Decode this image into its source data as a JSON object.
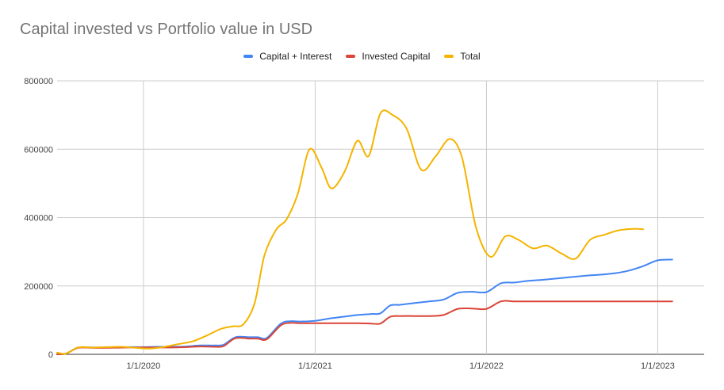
{
  "chart_data": {
    "type": "line",
    "title": "Capital invested vs Portfolio value in USD",
    "xlabel": "",
    "ylabel": "",
    "ylim": [
      0,
      800000
    ],
    "xlim": [
      "2019-07-01",
      "2023-04-10"
    ],
    "grid": true,
    "legend_position": "top",
    "y_ticks": [
      {
        "value": 0,
        "label": "0"
      },
      {
        "value": 200000,
        "label": "200000"
      },
      {
        "value": 400000,
        "label": "400000"
      },
      {
        "value": 600000,
        "label": "600000"
      },
      {
        "value": 800000,
        "label": "800000"
      }
    ],
    "x_ticks": [
      {
        "value": "2020-01-01",
        "label": "1/1/2020"
      },
      {
        "value": "2021-01-01",
        "label": "1/1/2021"
      },
      {
        "value": "2022-01-01",
        "label": "1/1/2022"
      },
      {
        "value": "2023-01-01",
        "label": "1/1/2023"
      }
    ],
    "series": [
      {
        "name": "Capital + Interest",
        "color": "#4285f4",
        "points": [
          [
            "2019-07-01",
            0
          ],
          [
            "2019-07-20",
            2000
          ],
          [
            "2019-08-15",
            20000
          ],
          [
            "2019-09-15",
            20000
          ],
          [
            "2019-10-15",
            20000
          ],
          [
            "2019-12-01",
            21000
          ],
          [
            "2020-01-01",
            21000
          ],
          [
            "2020-02-01",
            22000
          ],
          [
            "2020-03-01",
            22000
          ],
          [
            "2020-04-01",
            23000
          ],
          [
            "2020-05-01",
            26000
          ],
          [
            "2020-06-01",
            26000
          ],
          [
            "2020-06-20",
            28000
          ],
          [
            "2020-07-15",
            50000
          ],
          [
            "2020-08-15",
            50000
          ],
          [
            "2020-09-01",
            50000
          ],
          [
            "2020-09-20",
            48000
          ],
          [
            "2020-10-20",
            90000
          ],
          [
            "2020-11-10",
            97000
          ],
          [
            "2020-12-01",
            96000
          ],
          [
            "2021-01-01",
            98000
          ],
          [
            "2021-02-01",
            105000
          ],
          [
            "2021-03-01",
            110000
          ],
          [
            "2021-04-01",
            115000
          ],
          [
            "2021-05-01",
            118000
          ],
          [
            "2021-05-20",
            120000
          ],
          [
            "2021-06-10",
            143000
          ],
          [
            "2021-07-01",
            145000
          ],
          [
            "2021-08-01",
            150000
          ],
          [
            "2021-09-01",
            155000
          ],
          [
            "2021-10-01",
            160000
          ],
          [
            "2021-11-01",
            180000
          ],
          [
            "2021-12-01",
            183000
          ],
          [
            "2022-01-01",
            182000
          ],
          [
            "2022-02-01",
            208000
          ],
          [
            "2022-03-01",
            210000
          ],
          [
            "2022-04-01",
            215000
          ],
          [
            "2022-05-01",
            218000
          ],
          [
            "2022-06-01",
            222000
          ],
          [
            "2022-07-01",
            226000
          ],
          [
            "2022-08-01",
            230000
          ],
          [
            "2022-09-01",
            233000
          ],
          [
            "2022-10-01",
            237000
          ],
          [
            "2022-11-01",
            245000
          ],
          [
            "2022-12-01",
            258000
          ],
          [
            "2023-01-01",
            275000
          ],
          [
            "2023-02-01",
            277000
          ]
        ]
      },
      {
        "name": "Invested Capital",
        "color": "#db4437",
        "points": [
          [
            "2019-07-01",
            0
          ],
          [
            "2019-07-20",
            2000
          ],
          [
            "2019-08-15",
            19000
          ],
          [
            "2019-09-15",
            19000
          ],
          [
            "2019-10-15",
            19000
          ],
          [
            "2019-12-01",
            20000
          ],
          [
            "2020-01-01",
            20000
          ],
          [
            "2020-02-01",
            20000
          ],
          [
            "2020-03-01",
            20000
          ],
          [
            "2020-04-01",
            21000
          ],
          [
            "2020-05-01",
            23000
          ],
          [
            "2020-06-01",
            22000
          ],
          [
            "2020-06-20",
            24000
          ],
          [
            "2020-07-15",
            47000
          ],
          [
            "2020-08-15",
            46000
          ],
          [
            "2020-09-01",
            46000
          ],
          [
            "2020-09-20",
            44000
          ],
          [
            "2020-10-20",
            85000
          ],
          [
            "2020-11-10",
            92000
          ],
          [
            "2020-12-01",
            91000
          ],
          [
            "2021-01-01",
            91000
          ],
          [
            "2021-02-01",
            91000
          ],
          [
            "2021-03-01",
            91000
          ],
          [
            "2021-04-01",
            91000
          ],
          [
            "2021-05-01",
            90000
          ],
          [
            "2021-05-20",
            90000
          ],
          [
            "2021-06-10",
            110000
          ],
          [
            "2021-07-01",
            112000
          ],
          [
            "2021-08-01",
            112000
          ],
          [
            "2021-09-01",
            112000
          ],
          [
            "2021-10-01",
            115000
          ],
          [
            "2021-11-01",
            133000
          ],
          [
            "2021-12-01",
            134000
          ],
          [
            "2022-01-01",
            133000
          ],
          [
            "2022-02-01",
            155000
          ],
          [
            "2022-03-01",
            155000
          ],
          [
            "2022-04-01",
            155000
          ],
          [
            "2022-05-01",
            155000
          ],
          [
            "2022-06-01",
            155000
          ],
          [
            "2022-07-01",
            155000
          ],
          [
            "2022-08-01",
            155000
          ],
          [
            "2022-09-01",
            155000
          ],
          [
            "2022-10-01",
            155000
          ],
          [
            "2022-11-01",
            155000
          ],
          [
            "2022-12-01",
            155000
          ],
          [
            "2023-01-01",
            155000
          ],
          [
            "2023-02-01",
            155000
          ]
        ]
      },
      {
        "name": "Total",
        "color": "#f4b400",
        "points": [
          [
            "2019-07-01",
            5000
          ],
          [
            "2019-07-20",
            2000
          ],
          [
            "2019-08-15",
            20000
          ],
          [
            "2019-09-15",
            20000
          ],
          [
            "2019-10-15",
            21000
          ],
          [
            "2019-11-15",
            22000
          ],
          [
            "2019-12-15",
            19000
          ],
          [
            "2020-01-15",
            17000
          ],
          [
            "2020-02-15",
            22000
          ],
          [
            "2020-03-15",
            30000
          ],
          [
            "2020-04-15",
            38000
          ],
          [
            "2020-05-15",
            55000
          ],
          [
            "2020-06-15",
            75000
          ],
          [
            "2020-07-10",
            82000
          ],
          [
            "2020-08-01",
            88000
          ],
          [
            "2020-08-25",
            150000
          ],
          [
            "2020-09-15",
            290000
          ],
          [
            "2020-10-10",
            365000
          ],
          [
            "2020-11-01",
            395000
          ],
          [
            "2020-11-25",
            470000
          ],
          [
            "2020-12-20",
            600000
          ],
          [
            "2021-01-15",
            545000
          ],
          [
            "2021-02-05",
            485000
          ],
          [
            "2021-03-05",
            535000
          ],
          [
            "2021-04-01",
            625000
          ],
          [
            "2021-04-25",
            580000
          ],
          [
            "2021-05-20",
            705000
          ],
          [
            "2021-06-15",
            700000
          ],
          [
            "2021-07-15",
            660000
          ],
          [
            "2021-08-15",
            540000
          ],
          [
            "2021-09-15",
            580000
          ],
          [
            "2021-10-15",
            630000
          ],
          [
            "2021-11-10",
            575000
          ],
          [
            "2021-12-10",
            370000
          ],
          [
            "2022-01-10",
            285000
          ],
          [
            "2022-02-10",
            345000
          ],
          [
            "2022-03-10",
            335000
          ],
          [
            "2022-04-10",
            310000
          ],
          [
            "2022-05-10",
            318000
          ],
          [
            "2022-06-10",
            295000
          ],
          [
            "2022-07-10",
            280000
          ],
          [
            "2022-08-10",
            335000
          ],
          [
            "2022-09-10",
            350000
          ],
          [
            "2022-10-10",
            363000
          ],
          [
            "2022-11-10",
            367000
          ],
          [
            "2022-12-01",
            366000
          ]
        ]
      }
    ]
  }
}
